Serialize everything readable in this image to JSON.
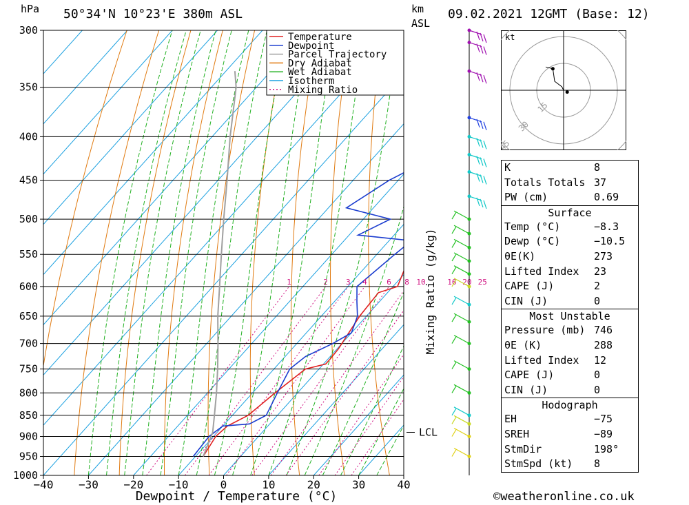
{
  "header": {
    "hpa_label": "hPa",
    "location": "50°34'N  10°23'E  380m  ASL",
    "km_label": "km",
    "asl_label": "ASL",
    "datetime": "09.02.2021  12GMT  (Base: 12)"
  },
  "chart_data": {
    "type": "line",
    "subtype": "skew-T log-p sounding",
    "xlabel": "Dewpoint / Temperature (°C)",
    "ylabel": "hPa",
    "secondary_ylabel": "Mixing Ratio (g/kg)",
    "xlim": [
      -40,
      40
    ],
    "ylim": [
      1000,
      300
    ],
    "x_ticks": [
      "−40",
      "−30",
      "−20",
      "−10",
      "0",
      "10",
      "20",
      "30",
      "40"
    ],
    "pressure_levels": [
      300,
      350,
      400,
      450,
      500,
      550,
      600,
      650,
      700,
      750,
      800,
      850,
      900,
      950,
      1000
    ],
    "mixing_ratio_labels": [
      "1",
      "2",
      "3",
      "4",
      "6",
      "8",
      "10",
      "16",
      "20",
      "25"
    ],
    "mixing_ratio_values": [
      1,
      2,
      3,
      4,
      6,
      8,
      10,
      16,
      20,
      25
    ],
    "lcl_label": "LCL",
    "lcl_pressure": 890,
    "legend": {
      "placement": "top-right",
      "items": [
        {
          "label": "Temperature",
          "color": "#e02020",
          "dash": ""
        },
        {
          "label": "Dewpoint",
          "color": "#1a3ccf",
          "dash": ""
        },
        {
          "label": "Parcel Trajectory",
          "color": "#a0a0a0",
          "dash": ""
        },
        {
          "label": "Dry Adiabat",
          "color": "#e07a10",
          "dash": ""
        },
        {
          "label": "Wet Adiabat",
          "color": "#20b020",
          "dash": ""
        },
        {
          "label": "Isotherm",
          "color": "#1aa0e0",
          "dash": ""
        },
        {
          "label": "Mixing Ratio",
          "color": "#d01080",
          "dash": "2,3"
        }
      ]
    },
    "series": [
      {
        "name": "Temperature",
        "color": "#e02020",
        "points": [
          [
            950,
            -8.3
          ],
          [
            900,
            -9.5
          ],
          [
            875,
            -9.0
          ],
          [
            850,
            -6.5
          ],
          [
            800,
            -5.0
          ],
          [
            750,
            -3.0
          ],
          [
            740,
            0.5
          ],
          [
            730,
            0.5
          ],
          [
            710,
            0.3
          ],
          [
            700,
            0.0
          ],
          [
            650,
            -1.5
          ],
          [
            610,
            -2.0
          ],
          [
            600,
            1.0
          ],
          [
            550,
            -2.5
          ],
          [
            500,
            -7.0
          ],
          [
            450,
            -14.0
          ],
          [
            400,
            -21.0
          ],
          [
            370,
            -24.0
          ],
          [
            365,
            -24.0
          ]
        ]
      },
      {
        "name": "Dewpoint",
        "color": "#1a3ccf",
        "points": [
          [
            950,
            -10.5
          ],
          [
            900,
            -11.0
          ],
          [
            875,
            -10.0
          ],
          [
            870,
            -4.5
          ],
          [
            850,
            -2.5
          ],
          [
            800,
            -4.5
          ],
          [
            750,
            -6.5
          ],
          [
            725,
            -5.5
          ],
          [
            700,
            -2.0
          ],
          [
            680,
            0.0
          ],
          [
            650,
            -2.0
          ],
          [
            625,
            -5.0
          ],
          [
            600,
            -8.0
          ],
          [
            550,
            -6.0
          ],
          [
            530,
            -5.0
          ],
          [
            522,
            -18.0
          ],
          [
            500,
            -14.0
          ],
          [
            485,
            -26.0
          ],
          [
            450,
            -22.0
          ],
          [
            410,
            -14.0
          ],
          [
            400,
            -25.0
          ],
          [
            365,
            -23.0
          ]
        ]
      },
      {
        "name": "Parcel Trajectory",
        "color": "#a0a0a0",
        "points": [
          [
            950,
            -8.3
          ],
          [
            890,
            -11.0
          ],
          [
            850,
            -14.0
          ],
          [
            800,
            -18.0
          ],
          [
            750,
            -22.5
          ],
          [
            700,
            -27.5
          ],
          [
            650,
            -33.0
          ],
          [
            600,
            -38.5
          ],
          [
            550,
            -44.5
          ],
          [
            500,
            -51.0
          ],
          [
            450,
            -58.0
          ],
          [
            400,
            -66.0
          ],
          [
            350,
            -74.5
          ],
          [
            335,
            -78.0
          ]
        ]
      }
    ],
    "wind_barbs": [
      {
        "p": 300,
        "color": "#a010b0"
      },
      {
        "p": 310,
        "color": "#a010b0"
      },
      {
        "p": 335,
        "color": "#a010b0"
      },
      {
        "p": 380,
        "color": "#2040e0"
      },
      {
        "p": 400,
        "color": "#10c8c8"
      },
      {
        "p": 420,
        "color": "#10c8c8"
      },
      {
        "p": 440,
        "color": "#10c8c8"
      },
      {
        "p": 470,
        "color": "#10c8c8"
      },
      {
        "p": 500,
        "color": "#20c020"
      },
      {
        "p": 520,
        "color": "#20c020"
      },
      {
        "p": 540,
        "color": "#20c020"
      },
      {
        "p": 560,
        "color": "#20c020"
      },
      {
        "p": 580,
        "color": "#20c020"
      },
      {
        "p": 600,
        "color": "#c8d820"
      },
      {
        "p": 630,
        "color": "#10c8c8"
      },
      {
        "p": 660,
        "color": "#20c020"
      },
      {
        "p": 700,
        "color": "#20c020"
      },
      {
        "p": 750,
        "color": "#20c020"
      },
      {
        "p": 800,
        "color": "#20c020"
      },
      {
        "p": 850,
        "color": "#10c8c8"
      },
      {
        "p": 870,
        "color": "#c8d820"
      },
      {
        "p": 900,
        "color": "#e0d010"
      },
      {
        "p": 950,
        "color": "#e0d010"
      }
    ],
    "hodograph": {
      "unit_label": "kt",
      "ring_labels": [
        "15",
        "30",
        "45"
      ],
      "trace_points": [
        [
          10,
          13
        ],
        [
          6,
          12
        ],
        [
          5,
          5
        ],
        [
          1,
          2
        ],
        [
          0,
          0
        ]
      ],
      "storm_motion": [
        2,
        -1
      ]
    }
  },
  "stats": {
    "block1": [
      {
        "label": "K",
        "value": "8"
      },
      {
        "label": "Totals Totals",
        "value": "37"
      },
      {
        "label": "PW (cm)",
        "value": "0.69"
      }
    ],
    "surface": {
      "title": "Surface",
      "rows": [
        {
          "label": "Temp (°C)",
          "value": "−8.3"
        },
        {
          "label": "Dewp (°C)",
          "value": "−10.5"
        },
        {
          "label": "θE(K)",
          "value": "273"
        },
        {
          "label": "Lifted Index",
          "value": "23"
        },
        {
          "label": "CAPE (J)",
          "value": "2"
        },
        {
          "label": "CIN (J)",
          "value": "0"
        }
      ]
    },
    "most_unstable": {
      "title": "Most Unstable",
      "rows": [
        {
          "label": "Pressure (mb)",
          "value": "746"
        },
        {
          "label": "θE (K)",
          "value": "288"
        },
        {
          "label": "Lifted Index",
          "value": "12"
        },
        {
          "label": "CAPE (J)",
          "value": "0"
        },
        {
          "label": "CIN (J)",
          "value": "0"
        }
      ]
    },
    "hodograph": {
      "title": "Hodograph",
      "rows": [
        {
          "label": "EH",
          "value": "−75"
        },
        {
          "label": "SREH",
          "value": "−89"
        },
        {
          "label": "StmDir",
          "value": "198°"
        },
        {
          "label": "StmSpd (kt)",
          "value": "8"
        }
      ]
    }
  },
  "footer": {
    "credit": "©weatheronline.co.uk"
  },
  "colors": {
    "isobar": "#000000",
    "isotherm": "#1aa0e0",
    "dry_adiabat": "#e07a10",
    "wet_adiabat": "#20b020",
    "mixing_ratio": "#d01080"
  }
}
